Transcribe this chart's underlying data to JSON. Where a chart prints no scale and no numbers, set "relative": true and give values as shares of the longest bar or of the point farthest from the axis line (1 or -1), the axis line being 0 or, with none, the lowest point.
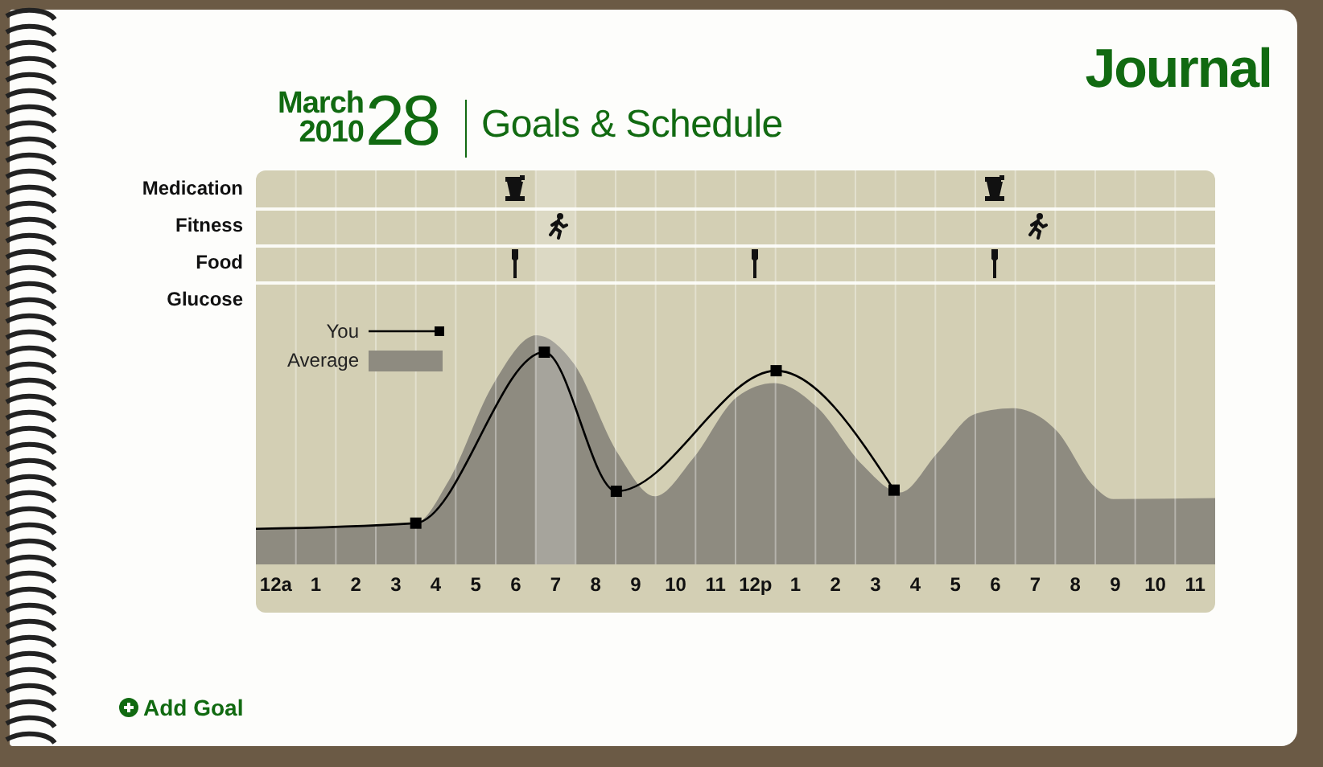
{
  "chart_data": {
    "type": "area",
    "title": "Goals & Schedule",
    "relative": true,
    "legend": "top left",
    "annotations": [
      "Journal",
      "March",
      "2010",
      "28",
      "Medication",
      "Fitness",
      "Food",
      "Glucose",
      "Add Goal"
    ],
    "xlim": [
      "2010-03-27T23:30",
      "2010-03-28T23:30"
    ],
    "xticks": [
      {
        "value": "2010-03-28T00:00",
        "label": "12a"
      },
      {
        "value": "2010-03-28T01:00",
        "label": "1"
      },
      {
        "value": "2010-03-28T02:00",
        "label": "2"
      },
      {
        "value": "2010-03-28T03:00",
        "label": "3"
      },
      {
        "value": "2010-03-28T04:00",
        "label": "4"
      },
      {
        "value": "2010-03-28T05:00",
        "label": "5"
      },
      {
        "value": "2010-03-28T06:00",
        "label": "6"
      },
      {
        "value": "2010-03-28T07:00",
        "label": "7"
      },
      {
        "value": "2010-03-28T08:00",
        "label": "8"
      },
      {
        "value": "2010-03-28T09:00",
        "label": "9"
      },
      {
        "value": "2010-03-28T10:00",
        "label": "10"
      },
      {
        "value": "2010-03-28T11:00",
        "label": "11"
      },
      {
        "value": "2010-03-28T12:00",
        "label": "12p"
      },
      {
        "value": "2010-03-28T13:00",
        "label": "1"
      },
      {
        "value": "2010-03-28T14:00",
        "label": "2"
      },
      {
        "value": "2010-03-28T15:00",
        "label": "3"
      },
      {
        "value": "2010-03-28T16:00",
        "label": "4"
      },
      {
        "value": "2010-03-28T17:00",
        "label": "5"
      },
      {
        "value": "2010-03-28T18:00",
        "label": "6"
      },
      {
        "value": "2010-03-28T19:00",
        "label": "7"
      },
      {
        "value": "2010-03-28T20:00",
        "label": "8"
      },
      {
        "value": "2010-03-28T21:00",
        "label": "9"
      },
      {
        "value": "2010-03-28T22:00",
        "label": "10"
      },
      {
        "value": "2010-03-28T23:00",
        "label": "11"
      }
    ],
    "grid": "x",
    "bands": [
      {
        "axis": "x",
        "from": "2010-03-28T06:30",
        "to": "2010-03-28T07:30"
      }
    ],
    "series": [
      {
        "name": "Average",
        "type": "area",
        "color": "#8e8b80",
        "x": [
          "2010-03-27T23:30",
          "2010-03-28T03:30",
          "2010-03-28T04:19",
          "2010-03-28T05:25",
          "2010-03-28T06:31",
          "2010-03-28T07:27",
          "2010-03-28T08:33",
          "2010-03-28T09:29",
          "2010-03-28T10:26",
          "2010-03-28T11:32",
          "2010-03-28T12:28",
          "2010-03-28T13:34",
          "2010-03-28T14:40",
          "2010-03-28T15:37",
          "2010-03-28T16:33",
          "2010-03-28T17:30",
          "2010-03-28T18:26",
          "2010-03-28T19:32",
          "2010-03-28T20:29",
          "2010-03-28T20:57",
          "2010-03-28T23:30"
        ],
        "values": [
          0.155,
          0.18,
          0.363,
          0.78,
          1.0,
          0.877,
          0.486,
          0.297,
          0.461,
          0.73,
          0.791,
          0.681,
          0.436,
          0.314,
          0.486,
          0.657,
          0.681,
          0.583,
          0.338,
          0.285,
          0.289
        ]
      },
      {
        "name": "You",
        "type": "line",
        "color": "#000000",
        "marker": "square",
        "x": [
          "2010-03-27T23:30",
          "2010-03-28T03:30",
          "2010-03-28T06:43",
          "2010-03-28T08:31",
          "2010-03-28T12:31",
          "2010-03-28T15:28"
        ],
        "values": [
          0.155,
          0.18,
          0.926,
          0.319,
          0.845,
          0.324
        ]
      }
    ]
  }
}
